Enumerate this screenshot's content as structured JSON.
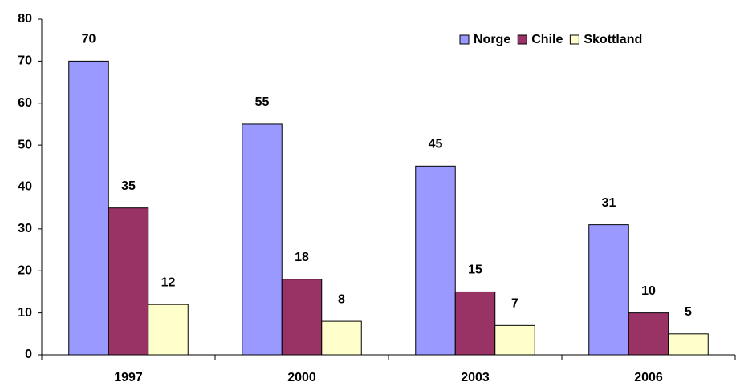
{
  "chart_data": {
    "type": "bar",
    "categories": [
      "1997",
      "2000",
      "2003",
      "2006"
    ],
    "series": [
      {
        "name": "Norge",
        "color": "#9999ff",
        "values": [
          70,
          55,
          45,
          31
        ]
      },
      {
        "name": "Chile",
        "color": "#993366",
        "values": [
          35,
          18,
          15,
          10
        ]
      },
      {
        "name": "Skottland",
        "color": "#ffffcc",
        "values": [
          12,
          8,
          7,
          5
        ]
      }
    ],
    "ylim": [
      0,
      80
    ],
    "yticks": [
      0,
      10,
      20,
      30,
      40,
      50,
      60,
      70,
      80
    ],
    "grid": false,
    "legend": "top-right"
  }
}
